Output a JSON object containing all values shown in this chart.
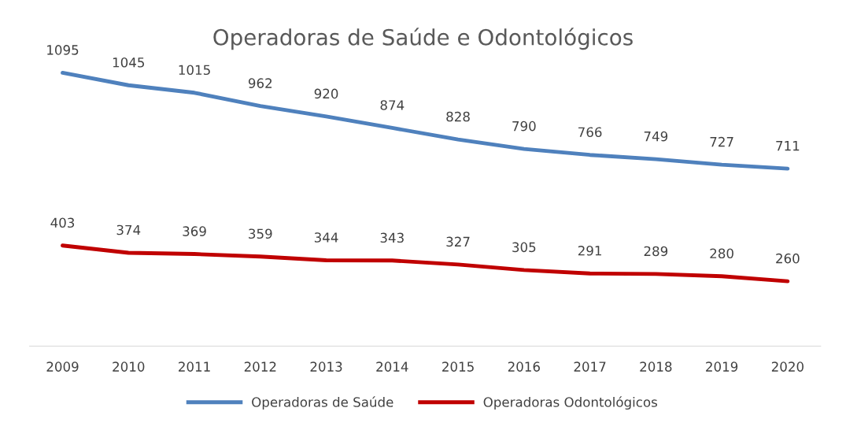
{
  "chart_data": {
    "type": "line",
    "title": "Operadoras de Saúde e Odontológicos",
    "categories": [
      "2009",
      "2010",
      "2011",
      "2012",
      "2013",
      "2014",
      "2015",
      "2016",
      "2017",
      "2018",
      "2019",
      "2020"
    ],
    "series": [
      {
        "name": "Operadoras de Saúde",
        "color": "#4f81bd",
        "values": [
          1095,
          1045,
          1015,
          962,
          920,
          874,
          828,
          790,
          766,
          749,
          727,
          711
        ]
      },
      {
        "name": "Operadoras Odontológicos",
        "color": "#c00000",
        "values": [
          403,
          374,
          369,
          359,
          344,
          343,
          327,
          305,
          291,
          289,
          280,
          260
        ]
      }
    ],
    "data_labels": true,
    "legend": "bottom",
    "grid": false,
    "marker": "none",
    "line_style": "solid",
    "tick_labels": "x"
  }
}
